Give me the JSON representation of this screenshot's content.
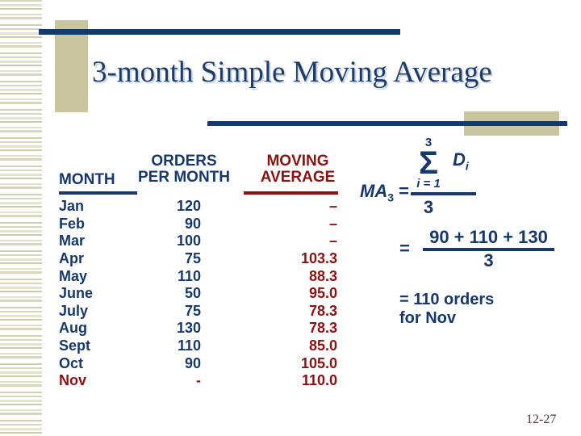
{
  "slide": {
    "title": "3-month Simple Moving Average",
    "page_number": "12-27"
  },
  "table": {
    "headers": {
      "month": "MONTH",
      "orders": "ORDERS\nPER MONTH",
      "moving_average": "MOVING\nAVERAGE"
    },
    "rows": [
      {
        "month": "Jan",
        "orders": "120",
        "ma": "–"
      },
      {
        "month": "Feb",
        "orders": "90",
        "ma": "–"
      },
      {
        "month": "Mar",
        "orders": "100",
        "ma": "–"
      },
      {
        "month": "Apr",
        "orders": "75",
        "ma": "103.3"
      },
      {
        "month": "May",
        "orders": "110",
        "ma": "88.3"
      },
      {
        "month": "June",
        "orders": "50",
        "ma": "95.0"
      },
      {
        "month": "July",
        "orders": "75",
        "ma": "78.3"
      },
      {
        "month": "Aug",
        "orders": "130",
        "ma": "78.3"
      },
      {
        "month": "Sept",
        "orders": "110",
        "ma": "85.0"
      },
      {
        "month": "Oct",
        "orders": "90",
        "ma": "105.0"
      },
      {
        "month": "Nov",
        "orders": "-",
        "ma": "110.0"
      }
    ]
  },
  "formula": {
    "lhs_base": "MA",
    "lhs_sub": "3",
    "lhs_equals": "=",
    "sigma_upper": "3",
    "sigma_symbol": "Σ",
    "sigma_lower": "i = 1",
    "term_base": "D",
    "term_sub": "i",
    "denominator1": "3",
    "step2_equals": "=",
    "step2_numerator": "90 + 110 + 130",
    "step2_denominator": "3",
    "result": "= 110 orders\nfor Nov"
  },
  "colors": {
    "navy": "#17386b",
    "dark_red": "#8e1111",
    "tan": "#c9c59e",
    "title_navy": "#1d3d68",
    "page_number": "#4f3038"
  }
}
